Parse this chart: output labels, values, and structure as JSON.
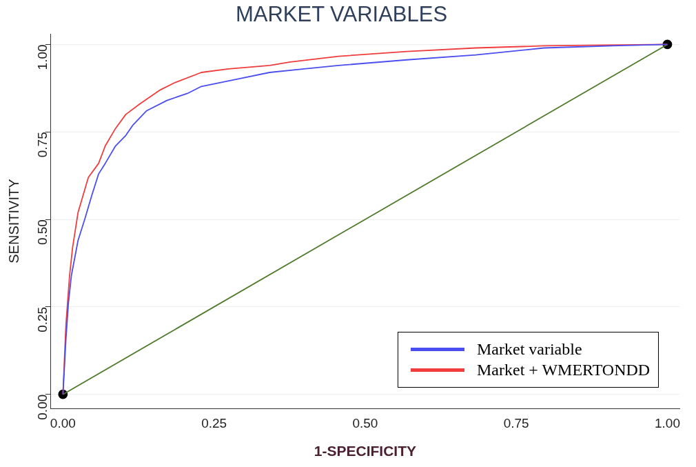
{
  "chart_data": {
    "type": "line",
    "title": "MARKET VARIABLES",
    "xlabel": "1-SPECIFICITY",
    "ylabel": "SENSITIVITY",
    "xlim": [
      -0.02,
      1.02
    ],
    "ylim": [
      -0.04,
      1.03
    ],
    "xticks": [
      {
        "value": 0,
        "label": "0.00"
      },
      {
        "value": 0.25,
        "label": "0.25"
      },
      {
        "value": 0.5,
        "label": "0.50"
      },
      {
        "value": 0.75,
        "label": "0.75"
      },
      {
        "value": 1,
        "label": "1.00"
      }
    ],
    "yticks": [
      {
        "value": 0,
        "label": "0.00"
      },
      {
        "value": 0.25,
        "label": "0.25"
      },
      {
        "value": 0.5,
        "label": "0.50"
      },
      {
        "value": 0.75,
        "label": "0.75"
      },
      {
        "value": 1,
        "label": "1.00"
      }
    ],
    "grid": "y",
    "legend": "bottom right",
    "marker": "none",
    "series": [
      {
        "name": "Market variable",
        "color": "#4a4ef0",
        "x": [
          0,
          0.005,
          0.009,
          0.014,
          0.025,
          0.036,
          0.048,
          0.059,
          0.07,
          0.087,
          0.104,
          0.116,
          0.138,
          0.172,
          0.206,
          0.229,
          0.286,
          0.342,
          0.399,
          0.456,
          0.569,
          0.683,
          0.796,
          0.909,
          1
        ],
        "values": [
          0,
          0.16,
          0.26,
          0.34,
          0.44,
          0.5,
          0.57,
          0.63,
          0.66,
          0.71,
          0.74,
          0.77,
          0.81,
          0.84,
          0.86,
          0.88,
          0.9,
          0.92,
          0.93,
          0.94,
          0.956,
          0.97,
          0.99,
          0.996,
          1
        ]
      },
      {
        "name": "Market + WMERTONDD",
        "color": "#f03c3c",
        "x": [
          0,
          0.005,
          0.011,
          0.016,
          0.025,
          0.042,
          0.059,
          0.07,
          0.087,
          0.104,
          0.127,
          0.161,
          0.184,
          0.229,
          0.274,
          0.342,
          0.376,
          0.456,
          0.569,
          0.683,
          0.796,
          1
        ],
        "values": [
          0,
          0.2,
          0.34,
          0.42,
          0.52,
          0.62,
          0.66,
          0.71,
          0.76,
          0.8,
          0.83,
          0.87,
          0.89,
          0.92,
          0.93,
          0.94,
          0.95,
          0.966,
          0.98,
          0.99,
          0.996,
          1
        ]
      },
      {
        "color": "#4e7a2a",
        "x": [
          0,
          1
        ],
        "values": [
          0,
          1
        ]
      },
      {
        "type": "scatter",
        "marker": "circle",
        "color": "#000000",
        "x": [
          0,
          1
        ],
        "values": [
          0,
          1
        ]
      }
    ]
  }
}
